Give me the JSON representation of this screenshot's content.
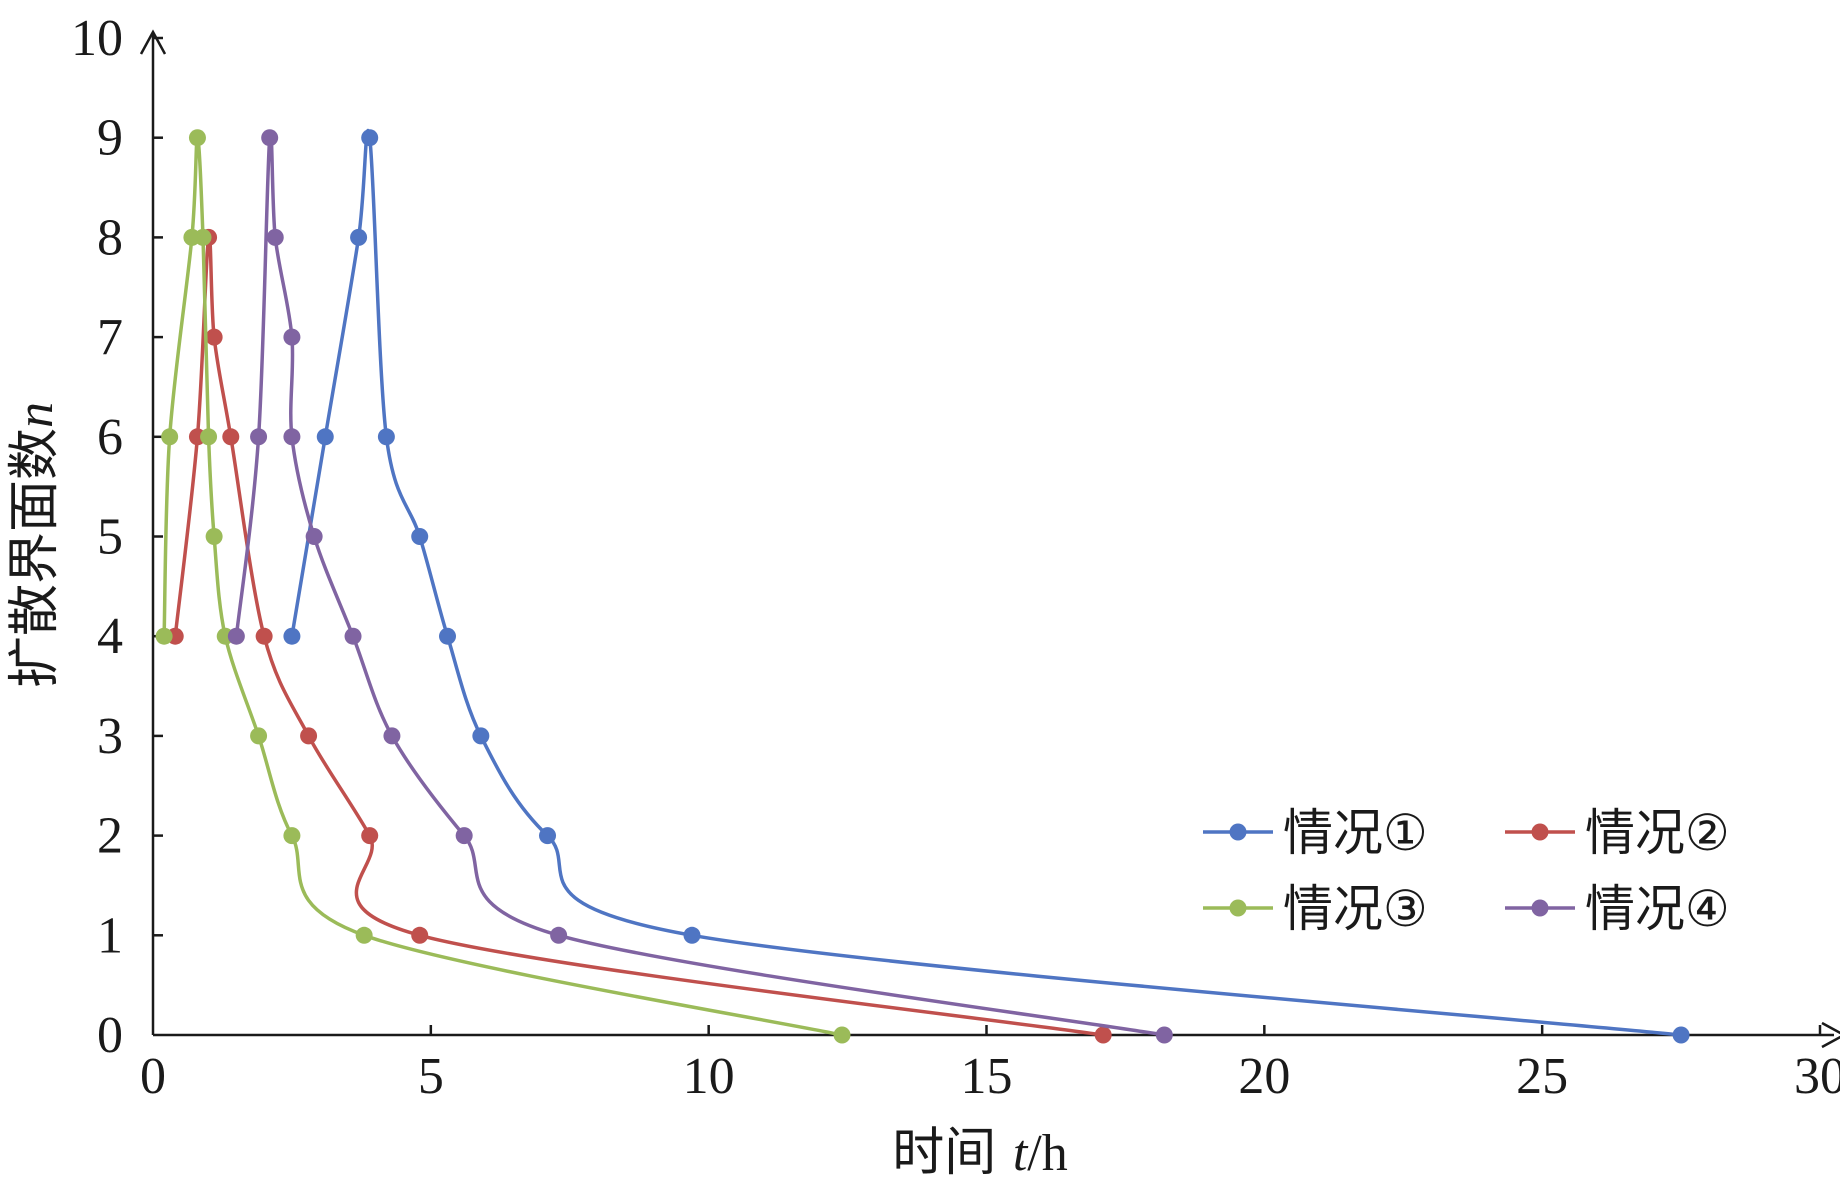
{
  "chart_data": {
    "type": "line",
    "title": "",
    "xlabel_prefix": "时间 ",
    "xlabel_var": "t",
    "xlabel_unit": "/h",
    "ylabel_prefix": "扩散界面数",
    "ylabel_var": "n",
    "xlim": [
      0,
      30
    ],
    "ylim": [
      0,
      10
    ],
    "x_ticks": [
      "0",
      "5",
      "10",
      "15",
      "20",
      "25",
      "30"
    ],
    "y_ticks": [
      "0",
      "1",
      "2",
      "3",
      "4",
      "5",
      "6",
      "7",
      "8",
      "9",
      "10"
    ],
    "grid": false,
    "legend_position": "bottom-right",
    "series": [
      {
        "name": "情况①",
        "color": "#4f75c3",
        "points": [
          [
            27.5,
            0
          ],
          [
            9.7,
            1
          ],
          [
            7.1,
            2
          ],
          [
            5.9,
            3
          ],
          [
            5.3,
            4
          ],
          [
            4.8,
            5
          ],
          [
            4.2,
            6
          ],
          [
            3.9,
            9
          ],
          [
            3.7,
            8
          ],
          [
            3.1,
            6
          ],
          [
            2.5,
            4
          ]
        ]
      },
      {
        "name": "情况②",
        "color": "#c0504d",
        "points": [
          [
            17.1,
            0
          ],
          [
            4.8,
            1
          ],
          [
            3.9,
            2
          ],
          [
            2.8,
            3
          ],
          [
            2.0,
            4
          ],
          [
            1.4,
            6
          ],
          [
            1.1,
            7
          ],
          [
            1.0,
            8
          ],
          [
            0.8,
            6
          ],
          [
            0.4,
            4
          ]
        ]
      },
      {
        "name": "情况③",
        "color": "#9bbb59",
        "points": [
          [
            12.4,
            0
          ],
          [
            3.8,
            1
          ],
          [
            2.5,
            2
          ],
          [
            1.9,
            3
          ],
          [
            1.3,
            4
          ],
          [
            1.1,
            5
          ],
          [
            1.0,
            6
          ],
          [
            0.9,
            8
          ],
          [
            0.8,
            9
          ],
          [
            0.7,
            8
          ],
          [
            0.3,
            6
          ],
          [
            0.2,
            4
          ]
        ]
      },
      {
        "name": "情况④",
        "color": "#8064a2",
        "points": [
          [
            18.2,
            0
          ],
          [
            7.3,
            1
          ],
          [
            5.6,
            2
          ],
          [
            4.3,
            3
          ],
          [
            3.6,
            4
          ],
          [
            2.9,
            5
          ],
          [
            2.5,
            6
          ],
          [
            2.5,
            7
          ],
          [
            2.2,
            8
          ],
          [
            2.1,
            9
          ],
          [
            1.9,
            6
          ],
          [
            1.5,
            4
          ]
        ]
      }
    ]
  }
}
